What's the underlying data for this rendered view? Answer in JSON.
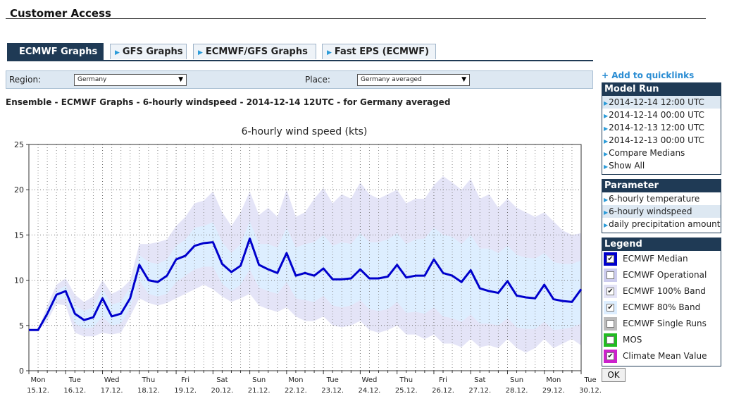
{
  "header": {
    "title": "Customer Access"
  },
  "tabs": [
    {
      "label": "ECMWF Graphs",
      "active": true
    },
    {
      "label": "GFS Graphs",
      "active": false
    },
    {
      "label": "ECMWF/GFS Graphs",
      "active": false
    },
    {
      "label": "Fast EPS (ECMWF)",
      "active": false
    }
  ],
  "filters": {
    "region_label": "Region:",
    "region_value": "Germany",
    "place_label": "Place:",
    "place_value": "Germany averaged"
  },
  "subtitle": "Ensemble - ECMWF Graphs - 6-hourly windspeed - 2014-12-14 12UTC - for Germany averaged",
  "sidebar": {
    "quicklinks": "+ Add to quicklinks",
    "model_run": {
      "title": "Model Run",
      "items": [
        "2014-12-14 12:00 UTC",
        "2014-12-14 00:00 UTC",
        "2014-12-13 12:00 UTC",
        "2014-12-13 00:00 UTC",
        "Compare Medians",
        "Show All"
      ],
      "selected_index": 0
    },
    "parameter": {
      "title": "Parameter",
      "items": [
        "6-hourly temperature",
        "6-hourly windspeed",
        "daily precipitation amount"
      ],
      "selected_index": 1
    },
    "legend": {
      "title": "Legend",
      "items": [
        {
          "label": "ECMWF Median",
          "color": "#0000cc",
          "checked": true
        },
        {
          "label": "ECMWF Operational",
          "color": "#ccccee",
          "checked": false
        },
        {
          "label": "ECMWF 100% Band",
          "color": "#e4e4f7",
          "checked": true
        },
        {
          "label": "ECMWF 80% Band",
          "color": "#ddeeff",
          "checked": true
        },
        {
          "label": "ECMWF Single Runs",
          "color": "#bbbbbb",
          "checked": false
        },
        {
          "label": "MOS",
          "color": "#22bb22",
          "checked": false
        },
        {
          "label": "Climate Mean Value",
          "color": "#cc22cc",
          "checked": true
        }
      ]
    },
    "ok_label": "OK"
  },
  "chart_data": {
    "type": "line",
    "title": "6-hourly wind speed (kts)",
    "ylim": [
      0,
      25
    ],
    "yticks": [
      0,
      5,
      10,
      15,
      20,
      25
    ],
    "xlim": [
      0,
      60
    ],
    "grid": true,
    "day_ticks": [
      {
        "day": "Mon",
        "date": "15.12."
      },
      {
        "day": "Tue",
        "date": "16.12."
      },
      {
        "day": "Wed",
        "date": "17.12."
      },
      {
        "day": "Thu",
        "date": "18.12."
      },
      {
        "day": "Fri",
        "date": "19.12."
      },
      {
        "day": "Sat",
        "date": "20.12."
      },
      {
        "day": "Sun",
        "date": "21.12."
      },
      {
        "day": "Mon",
        "date": "22.12."
      },
      {
        "day": "Tue",
        "date": "23.12."
      },
      {
        "day": "Wed",
        "date": "24.12."
      },
      {
        "day": "Thu",
        "date": "25.12."
      },
      {
        "day": "Fri",
        "date": "26.12."
      },
      {
        "day": "Sat",
        "date": "27.12."
      },
      {
        "day": "Sun",
        "date": "28.12."
      },
      {
        "day": "Mon",
        "date": "29.12."
      },
      {
        "day": "Tue",
        "date": "30.12."
      }
    ],
    "series": [
      {
        "name": "ECMWF Median",
        "color": "#0000cc",
        "values": [
          4.5,
          4.5,
          6.3,
          8.4,
          8.8,
          6.3,
          5.6,
          5.9,
          8.0,
          6.0,
          6.3,
          8.0,
          11.7,
          10.0,
          9.8,
          10.5,
          12.3,
          12.7,
          13.8,
          14.1,
          14.2,
          11.8,
          10.9,
          11.6,
          14.6,
          11.7,
          11.2,
          10.8,
          13.0,
          10.5,
          10.8,
          10.5,
          11.3,
          10.1,
          10.1,
          10.2,
          11.2,
          10.2,
          10.2,
          10.4,
          11.7,
          10.3,
          10.5,
          10.5,
          12.3,
          10.8,
          10.5,
          9.8,
          11.1,
          9.1,
          8.8,
          8.6,
          9.9,
          8.3,
          8.1,
          8.0,
          9.5,
          7.9,
          7.7,
          7.6,
          9.0
        ]
      }
    ],
    "bands": [
      {
        "name": "ECMWF 100% Band",
        "color": "#e4e4f7",
        "upper": [
          4.5,
          4.5,
          7.2,
          9.5,
          10.2,
          8.4,
          7.6,
          8.2,
          10.0,
          8.5,
          9.0,
          10.0,
          14.0,
          14.0,
          14.2,
          14.5,
          16.0,
          17.0,
          18.5,
          18.8,
          19.8,
          17.5,
          16.0,
          17.5,
          19.8,
          17.2,
          18.0,
          17.0,
          20.0,
          17.0,
          17.5,
          19.0,
          20.2,
          18.5,
          19.5,
          19.0,
          20.8,
          19.5,
          19.0,
          19.5,
          20.0,
          18.5,
          19.0,
          19.0,
          20.5,
          21.5,
          20.8,
          20.0,
          21.2,
          19.0,
          19.5,
          18.0,
          19.0,
          18.0,
          17.5,
          17.0,
          17.5,
          16.5,
          15.5,
          15.0,
          15.2
        ],
        "lower": [
          4.5,
          4.5,
          5.5,
          7.4,
          7.2,
          4.2,
          3.8,
          3.8,
          4.2,
          4.0,
          4.2,
          6.0,
          8.0,
          7.5,
          7.2,
          7.5,
          8.0,
          8.5,
          9.0,
          9.5,
          9.0,
          8.2,
          7.6,
          8.0,
          8.5,
          7.2,
          6.8,
          6.5,
          7.0,
          6.0,
          5.5,
          5.5,
          6.0,
          5.0,
          4.8,
          5.0,
          5.5,
          4.5,
          4.2,
          4.5,
          5.0,
          4.0,
          4.0,
          3.5,
          4.0,
          3.0,
          3.0,
          2.6,
          3.5,
          2.6,
          2.8,
          2.5,
          3.5,
          2.5,
          2.0,
          2.5,
          3.5,
          2.5,
          3.0,
          3.5,
          2.8
        ]
      },
      {
        "name": "ECMWF 80% Band",
        "color": "#ddeeff",
        "upper": [
          4.5,
          4.5,
          6.8,
          8.8,
          9.4,
          7.2,
          6.6,
          7.0,
          9.0,
          7.3,
          7.6,
          9.2,
          12.8,
          12.0,
          11.8,
          12.3,
          13.8,
          14.5,
          15.8,
          16.0,
          16.4,
          14.2,
          13.0,
          14.0,
          16.5,
          14.0,
          14.0,
          13.6,
          15.8,
          13.6,
          14.0,
          14.2,
          15.0,
          13.8,
          14.2,
          14.0,
          15.2,
          14.2,
          14.2,
          14.5,
          15.2,
          14.0,
          14.5,
          14.6,
          15.8,
          15.0,
          14.8,
          14.0,
          15.0,
          13.5,
          13.5,
          13.0,
          13.8,
          12.8,
          12.5,
          12.4,
          13.0,
          12.0,
          11.8,
          11.8,
          12.2
        ],
        "lower": [
          4.5,
          4.5,
          5.8,
          7.8,
          8.0,
          5.2,
          4.7,
          4.8,
          6.0,
          5.0,
          5.2,
          7.0,
          10.0,
          8.5,
          8.2,
          8.5,
          9.8,
          10.5,
          11.2,
          11.5,
          11.5,
          9.6,
          8.8,
          9.5,
          11.2,
          9.2,
          8.8,
          8.5,
          9.8,
          8.0,
          7.8,
          7.6,
          8.3,
          7.2,
          7.0,
          7.2,
          7.8,
          6.8,
          6.6,
          6.8,
          7.6,
          6.4,
          6.5,
          6.3,
          7.0,
          6.0,
          5.8,
          5.4,
          6.2,
          5.2,
          5.2,
          5.0,
          5.8,
          4.8,
          4.6,
          4.6,
          5.4,
          4.5,
          4.6,
          4.8,
          5.2
        ]
      }
    ]
  }
}
